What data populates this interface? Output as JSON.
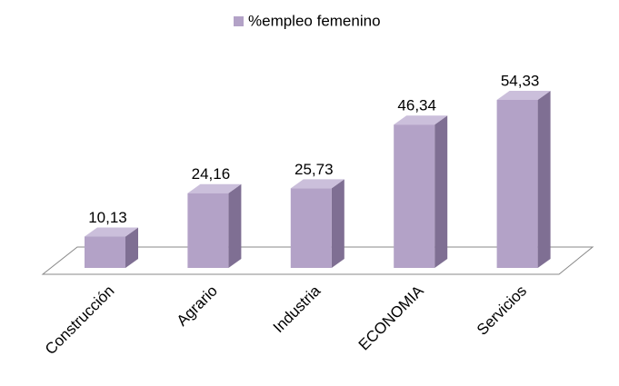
{
  "chart_data": {
    "type": "bar3d",
    "series": [
      {
        "name": "%empleo femenino",
        "color": "#b3a2c7",
        "values": [
          10.13,
          24.16,
          25.73,
          46.34,
          54.33
        ],
        "value_labels": [
          "10,13",
          "24,16",
          "25,73",
          "46,34",
          "54,33"
        ]
      }
    ],
    "categories": [
      "Construcción",
      "Agrario",
      "Industria",
      "ECONOMIA",
      "Servicios"
    ],
    "legend": "top"
  }
}
